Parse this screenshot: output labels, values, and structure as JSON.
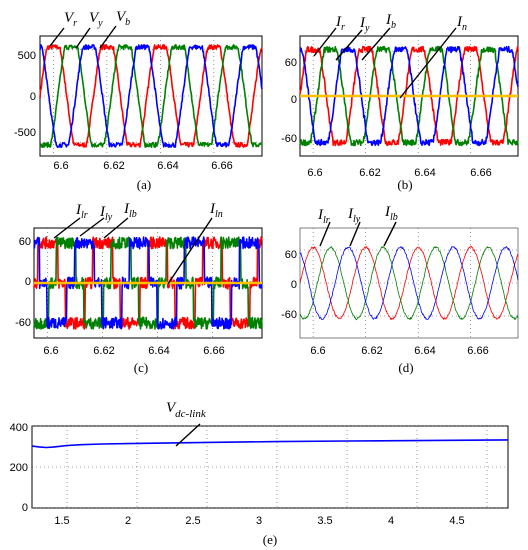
{
  "figure": {
    "captions": [
      "(a)",
      "(b)",
      "(c)",
      "(d)",
      "(e)"
    ]
  },
  "colors": {
    "r": "#ff0000",
    "y": "#008000",
    "b": "#0000ff",
    "n": "#ffc000",
    "dc": "#0000ff"
  },
  "chart_data": [
    {
      "type": "line",
      "id": "a",
      "caption": "(a)",
      "xticks": [
        "6.6",
        "6.62",
        "6.64",
        "6.66"
      ],
      "yticks": [
        "500",
        "0",
        "-500"
      ],
      "xlim": [
        6.595,
        6.678
      ],
      "ylim": [
        -650,
        650
      ],
      "grid": true,
      "series": [
        {
          "name": "V_r",
          "label": {
            "main": "V",
            "sub": "r"
          },
          "color": "r",
          "shape": "flat",
          "amplitude": 530,
          "phase_deg": 90,
          "noise": 25
        },
        {
          "name": "V_y",
          "label": {
            "main": "V",
            "sub": "y"
          },
          "color": "y",
          "shape": "flat",
          "amplitude": 530,
          "phase_deg": -30,
          "noise": 25
        },
        {
          "name": "V_b",
          "label": {
            "main": "V",
            "sub": "b"
          },
          "color": "b",
          "shape": "flat",
          "amplitude": 530,
          "phase_deg": 210,
          "noise": 25
        }
      ],
      "frequency_hz": 50
    },
    {
      "type": "line",
      "id": "b",
      "caption": "(b)",
      "xticks": [
        "6.6",
        "6.62",
        "6.64",
        "6.66"
      ],
      "yticks": [
        "60",
        "0",
        "-60"
      ],
      "xlim": [
        6.595,
        6.678
      ],
      "ylim": [
        -80,
        80
      ],
      "grid": true,
      "series": [
        {
          "name": "I_r",
          "label": {
            "main": "I",
            "sub": "r"
          },
          "color": "r",
          "shape": "flat",
          "amplitude": 62,
          "phase_deg": 90,
          "noise": 4
        },
        {
          "name": "I_y",
          "label": {
            "main": "I",
            "sub": "y"
          },
          "color": "y",
          "shape": "flat",
          "amplitude": 62,
          "phase_deg": -30,
          "noise": 4
        },
        {
          "name": "I_b",
          "label": {
            "main": "I",
            "sub": "b"
          },
          "color": "b",
          "shape": "flat",
          "amplitude": 62,
          "phase_deg": 210,
          "noise": 4
        },
        {
          "name": "I_n",
          "label": {
            "main": "I",
            "sub": "n"
          },
          "color": "n",
          "shape": "zero",
          "amplitude": 0,
          "phase_deg": 0,
          "noise": 0
        }
      ],
      "frequency_hz": 50
    },
    {
      "type": "line",
      "id": "c",
      "caption": "(c)",
      "xticks": [
        "6.6",
        "6.62",
        "6.64",
        "6.66"
      ],
      "yticks": [
        "60",
        "0",
        "-60"
      ],
      "xlim": [
        6.595,
        6.678
      ],
      "ylim": [
        -85,
        85
      ],
      "grid": true,
      "series": [
        {
          "name": "I_lr",
          "label": {
            "main": "I",
            "sub": "lr"
          },
          "color": "r",
          "shape": "square",
          "amplitude": 62,
          "phase_deg": 90,
          "noise": 9
        },
        {
          "name": "I_ly",
          "label": {
            "main": "I",
            "sub": "ly"
          },
          "color": "y",
          "shape": "square",
          "amplitude": 62,
          "phase_deg": -30,
          "noise": 9
        },
        {
          "name": "I_lb",
          "label": {
            "main": "I",
            "sub": "lb"
          },
          "color": "b",
          "shape": "square",
          "amplitude": 62,
          "phase_deg": 210,
          "noise": 9
        },
        {
          "name": "I_ln",
          "label": {
            "main": "I",
            "sub": "ln"
          },
          "color": "n",
          "shape": "zero",
          "amplitude": 0,
          "phase_deg": 0,
          "noise": 0
        }
      ],
      "frequency_hz": 50
    },
    {
      "type": "line",
      "id": "d",
      "caption": "(d)",
      "xticks": [
        "6.6",
        "6.62",
        "6.64",
        "6.66"
      ],
      "yticks": [
        "60",
        "0",
        "-60"
      ],
      "xlim": [
        6.595,
        6.678
      ],
      "ylim": [
        -100,
        100
      ],
      "grid": true,
      "series": [
        {
          "name": "I_lr",
          "label": {
            "main": "I",
            "sub": "lr"
          },
          "color": "r",
          "shape": "sine",
          "amplitude": 65,
          "phase_deg": 90,
          "noise": 2
        },
        {
          "name": "I_ly",
          "label": {
            "main": "I",
            "sub": "ly"
          },
          "color": "y",
          "shape": "sine",
          "amplitude": 65,
          "phase_deg": -30,
          "noise": 2
        },
        {
          "name": "I_lb",
          "label": {
            "main": "I",
            "sub": "lb"
          },
          "color": "b",
          "shape": "sine",
          "amplitude": 65,
          "phase_deg": 210,
          "noise": 2
        }
      ],
      "frequency_hz": 50
    },
    {
      "type": "line",
      "id": "e",
      "caption": "(e)",
      "xticks": [
        "1.5",
        "2",
        "2.5",
        "3",
        "3.5",
        "4",
        "4.5"
      ],
      "yticks": [
        "400",
        "200",
        "0"
      ],
      "xlim": [
        1.25,
        4.65
      ],
      "ylim": [
        0,
        400
      ],
      "grid": true,
      "series": [
        {
          "name": "V_dc-link",
          "label": {
            "main": "V",
            "sub": "dc-link"
          },
          "color": "dc",
          "x": [
            1.25,
            1.3,
            1.35,
            1.4,
            1.45,
            1.5,
            1.6,
            1.75,
            2.0,
            2.5,
            3.0,
            3.5,
            4.0,
            4.5,
            4.65
          ],
          "y": [
            302,
            298,
            295,
            297,
            301,
            305,
            309,
            312,
            315,
            320,
            324,
            327,
            329,
            331,
            332
          ]
        }
      ]
    }
  ]
}
